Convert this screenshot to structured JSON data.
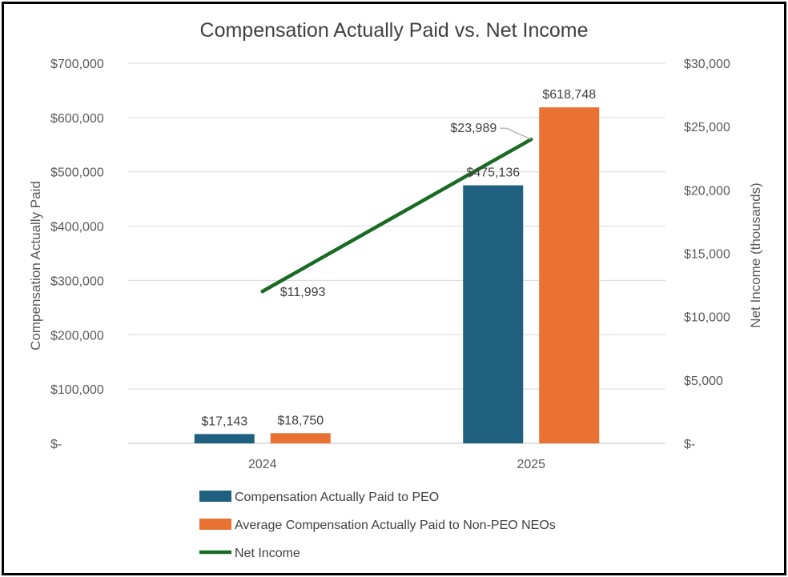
{
  "chart_data": {
    "type": "bar",
    "title": "Compensation Actually Paid vs. Net Income",
    "categories": [
      "2024",
      "2025"
    ],
    "ylabel": "Compensation Actually Paid",
    "y2label": "Net Income (thousands)",
    "ylim": [
      0,
      700000
    ],
    "y2lim": [
      0,
      30000
    ],
    "yticks": [
      0,
      100000,
      200000,
      300000,
      400000,
      500000,
      600000,
      700000
    ],
    "yticklabels": [
      "$-",
      "$100,000",
      "$200,000",
      "$300,000",
      "$400,000",
      "$500,000",
      "$600,000",
      "$700,000"
    ],
    "y2ticks": [
      0,
      5000,
      10000,
      15000,
      20000,
      25000,
      30000
    ],
    "y2ticklabels": [
      "$-",
      "$5,000",
      "$10,000",
      "$15,000",
      "$20,000",
      "$25,000",
      "$30,000"
    ],
    "grid": true,
    "legend_position": "bottom",
    "series": [
      {
        "name": "Compensation Actually Paid to PEO",
        "kind": "bar",
        "axis": "left",
        "color": "#1f5f80",
        "values": [
          17143,
          475136
        ],
        "labels": [
          "$17,143",
          "$475,136"
        ]
      },
      {
        "name": "Average Compensation Actually Paid to Non-PEO NEOs",
        "kind": "bar",
        "axis": "left",
        "color": "#e97132",
        "values": [
          18750,
          618748
        ],
        "labels": [
          "$18,750",
          "$618,748"
        ]
      },
      {
        "name": "Net Income",
        "kind": "line",
        "axis": "right",
        "color": "#196b24",
        "values": [
          11993,
          23989
        ],
        "labels": [
          "$11,993",
          "$23,989"
        ]
      }
    ]
  }
}
